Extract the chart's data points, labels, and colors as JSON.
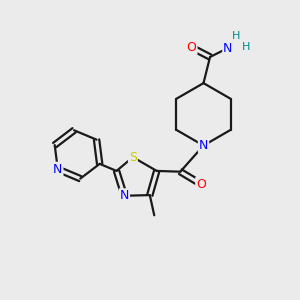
{
  "bg_color": "#ebebeb",
  "atom_colors": {
    "C": "#1a1a1a",
    "N": "#0000ff",
    "O": "#ff0000",
    "S": "#cccc00",
    "H": "#008b8b"
  },
  "bond_color": "#1a1a1a",
  "bond_width": 1.6,
  "figsize": [
    3.0,
    3.0
  ],
  "dpi": 100
}
